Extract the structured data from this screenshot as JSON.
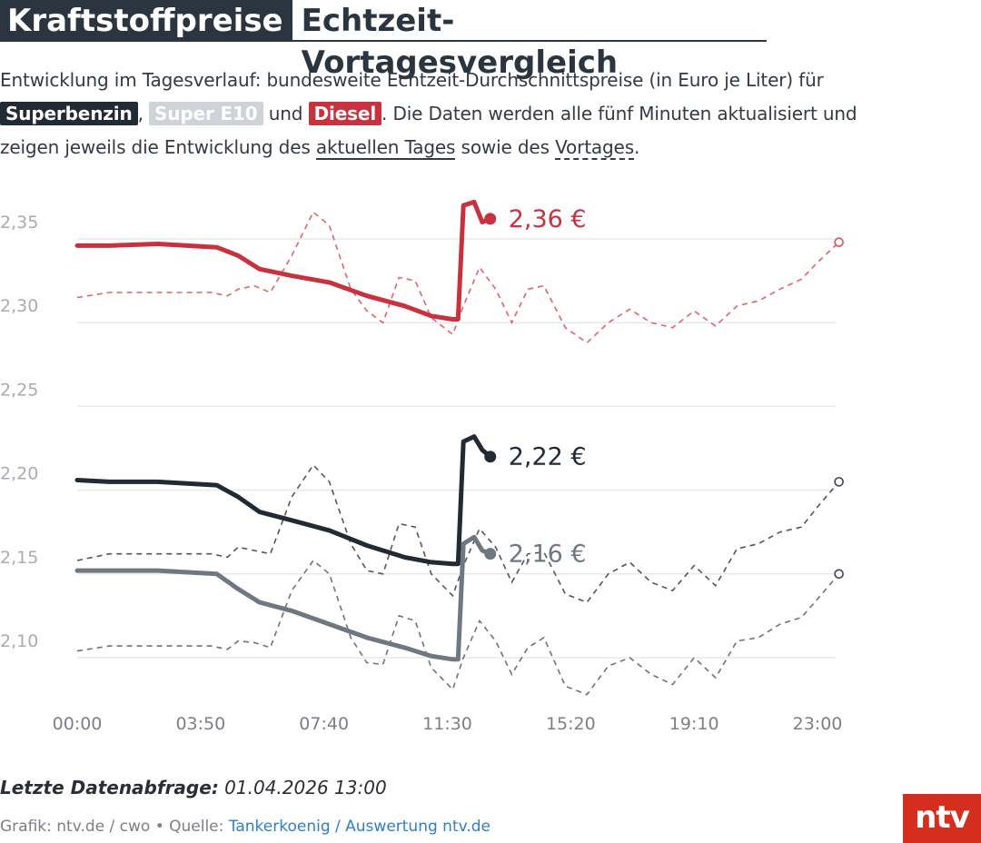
{
  "header": {
    "title_main": "Kraftstoffpreise",
    "title_sub": "Echtzeit-Vortagesvergleich"
  },
  "description": {
    "intro": "Entwicklung im Tagesverlauf: bundesweite Echtzeit-Durchschnittspreise (in Euro je Liter) für",
    "tag_super": "Superbenzin",
    "comma": ",",
    "tag_e10": "Super E10",
    "and": "und",
    "tag_diesel": "Diesel",
    "after_tags": ". Die Daten werden alle fünf Minuten aktualisiert und",
    "line3_start": "zeigen jeweils die Entwicklung des",
    "today_link": "aktuellen Tages",
    "middle": "sowie des",
    "yesterday_link": "Vortages",
    "end": "."
  },
  "chart_data": {
    "type": "line",
    "x_ticks": [
      "00:00",
      "03:50",
      "07:40",
      "11:30",
      "15:20",
      "19:10",
      "23:00"
    ],
    "y_ticks": [
      "2,10",
      "2,15",
      "2,20",
      "2,25",
      "2,30",
      "2,35"
    ],
    "ylim": [
      2.09,
      2.38
    ],
    "xlim_minutes": [
      0,
      1440
    ],
    "grid": true,
    "series": [
      {
        "name": "Diesel",
        "color": "#c8313e",
        "today_label": "2,36 €",
        "today": [
          [
            0,
            2.346
          ],
          [
            60,
            2.346
          ],
          [
            150,
            2.347
          ],
          [
            260,
            2.345
          ],
          [
            300,
            2.34
          ],
          [
            340,
            2.332
          ],
          [
            400,
            2.328
          ],
          [
            470,
            2.324
          ],
          [
            540,
            2.316
          ],
          [
            610,
            2.31
          ],
          [
            660,
            2.304
          ],
          [
            700,
            2.302
          ],
          [
            710,
            2.302
          ],
          [
            720,
            2.37
          ],
          [
            740,
            2.372
          ],
          [
            755,
            2.36
          ],
          [
            770,
            2.362
          ]
        ],
        "yesterday": [
          [
            0,
            2.315
          ],
          [
            60,
            2.318
          ],
          [
            150,
            2.318
          ],
          [
            250,
            2.318
          ],
          [
            280,
            2.316
          ],
          [
            300,
            2.32
          ],
          [
            330,
            2.322
          ],
          [
            360,
            2.318
          ],
          [
            400,
            2.34
          ],
          [
            440,
            2.366
          ],
          [
            470,
            2.358
          ],
          [
            510,
            2.32
          ],
          [
            540,
            2.307
          ],
          [
            570,
            2.3
          ],
          [
            600,
            2.327
          ],
          [
            630,
            2.325
          ],
          [
            660,
            2.303
          ],
          [
            700,
            2.293
          ],
          [
            720,
            2.31
          ],
          [
            750,
            2.333
          ],
          [
            780,
            2.32
          ],
          [
            810,
            2.3
          ],
          [
            840,
            2.32
          ],
          [
            870,
            2.322
          ],
          [
            910,
            2.297
          ],
          [
            950,
            2.288
          ],
          [
            990,
            2.3
          ],
          [
            1030,
            2.308
          ],
          [
            1070,
            2.3
          ],
          [
            1110,
            2.297
          ],
          [
            1150,
            2.307
          ],
          [
            1190,
            2.298
          ],
          [
            1230,
            2.31
          ],
          [
            1270,
            2.313
          ],
          [
            1310,
            2.32
          ],
          [
            1350,
            2.326
          ],
          [
            1380,
            2.336
          ],
          [
            1420,
            2.348
          ]
        ]
      },
      {
        "name": "Superbenzin",
        "color": "#222a33",
        "today_label": "2,22 €",
        "today": [
          [
            0,
            2.206
          ],
          [
            60,
            2.205
          ],
          [
            150,
            2.205
          ],
          [
            260,
            2.203
          ],
          [
            300,
            2.196
          ],
          [
            340,
            2.187
          ],
          [
            400,
            2.182
          ],
          [
            470,
            2.176
          ],
          [
            540,
            2.167
          ],
          [
            610,
            2.16
          ],
          [
            660,
            2.157
          ],
          [
            700,
            2.156
          ],
          [
            710,
            2.156
          ],
          [
            720,
            2.229
          ],
          [
            740,
            2.232
          ],
          [
            755,
            2.224
          ],
          [
            770,
            2.22
          ]
        ],
        "yesterday": [
          [
            0,
            2.158
          ],
          [
            60,
            2.162
          ],
          [
            150,
            2.162
          ],
          [
            250,
            2.162
          ],
          [
            280,
            2.16
          ],
          [
            300,
            2.166
          ],
          [
            330,
            2.164
          ],
          [
            360,
            2.162
          ],
          [
            400,
            2.196
          ],
          [
            440,
            2.215
          ],
          [
            470,
            2.205
          ],
          [
            510,
            2.168
          ],
          [
            540,
            2.152
          ],
          [
            570,
            2.15
          ],
          [
            600,
            2.18
          ],
          [
            630,
            2.178
          ],
          [
            660,
            2.15
          ],
          [
            700,
            2.137
          ],
          [
            720,
            2.155
          ],
          [
            750,
            2.177
          ],
          [
            780,
            2.166
          ],
          [
            810,
            2.145
          ],
          [
            840,
            2.162
          ],
          [
            870,
            2.163
          ],
          [
            910,
            2.138
          ],
          [
            950,
            2.133
          ],
          [
            990,
            2.15
          ],
          [
            1030,
            2.157
          ],
          [
            1070,
            2.145
          ],
          [
            1110,
            2.14
          ],
          [
            1150,
            2.155
          ],
          [
            1190,
            2.143
          ],
          [
            1230,
            2.165
          ],
          [
            1270,
            2.168
          ],
          [
            1310,
            2.175
          ],
          [
            1350,
            2.178
          ],
          [
            1380,
            2.19
          ],
          [
            1420,
            2.205
          ]
        ]
      },
      {
        "name": "Super E10",
        "color": "#6f7882",
        "today_label": "2,16 €",
        "today": [
          [
            0,
            2.152
          ],
          [
            60,
            2.152
          ],
          [
            150,
            2.152
          ],
          [
            260,
            2.15
          ],
          [
            300,
            2.141
          ],
          [
            340,
            2.133
          ],
          [
            400,
            2.128
          ],
          [
            470,
            2.12
          ],
          [
            540,
            2.112
          ],
          [
            610,
            2.106
          ],
          [
            660,
            2.101
          ],
          [
            700,
            2.099
          ],
          [
            710,
            2.099
          ],
          [
            720,
            2.168
          ],
          [
            740,
            2.172
          ],
          [
            755,
            2.164
          ],
          [
            770,
            2.162
          ]
        ],
        "yesterday": [
          [
            0,
            2.104
          ],
          [
            60,
            2.107
          ],
          [
            150,
            2.107
          ],
          [
            250,
            2.107
          ],
          [
            280,
            2.105
          ],
          [
            300,
            2.11
          ],
          [
            330,
            2.109
          ],
          [
            360,
            2.106
          ],
          [
            400,
            2.14
          ],
          [
            440,
            2.158
          ],
          [
            470,
            2.15
          ],
          [
            510,
            2.112
          ],
          [
            540,
            2.097
          ],
          [
            570,
            2.096
          ],
          [
            600,
            2.125
          ],
          [
            630,
            2.122
          ],
          [
            660,
            2.094
          ],
          [
            700,
            2.081
          ],
          [
            720,
            2.1
          ],
          [
            750,
            2.122
          ],
          [
            780,
            2.11
          ],
          [
            810,
            2.09
          ],
          [
            840,
            2.106
          ],
          [
            870,
            2.112
          ],
          [
            910,
            2.083
          ],
          [
            950,
            2.078
          ],
          [
            990,
            2.095
          ],
          [
            1030,
            2.1
          ],
          [
            1070,
            2.09
          ],
          [
            1110,
            2.084
          ],
          [
            1150,
            2.1
          ],
          [
            1190,
            2.088
          ],
          [
            1230,
            2.11
          ],
          [
            1270,
            2.112
          ],
          [
            1310,
            2.12
          ],
          [
            1350,
            2.124
          ],
          [
            1380,
            2.135
          ],
          [
            1420,
            2.15
          ]
        ]
      }
    ]
  },
  "footer": {
    "updated_label": "Letzte Datenabfrage:",
    "updated_value": "01.04.2026 13:00",
    "source_prefix": "Grafik: ntv.de / cwo • Quelle:",
    "source_link": "Tankerkoenig / Auswertung ntv.de",
    "logo": "ntv"
  }
}
